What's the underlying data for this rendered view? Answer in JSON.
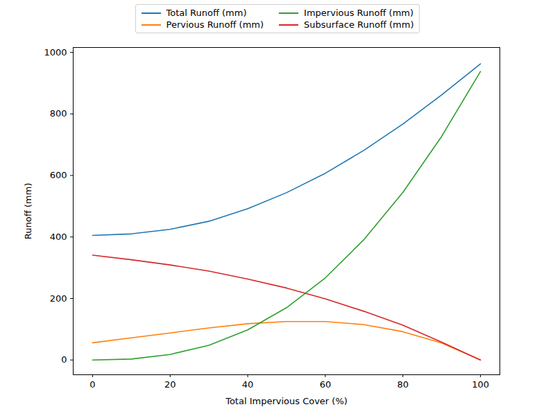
{
  "chart_data": {
    "type": "line",
    "x_label": "Total Impervious Cover (%)",
    "y_label": "Runoff (mm)",
    "x": [
      0,
      10,
      20,
      30,
      40,
      50,
      60,
      70,
      80,
      90,
      100
    ],
    "series": [
      {
        "name": "Total Runoff (mm)",
        "color": "#1f77b4",
        "values": [
          405,
          410,
          425,
          451,
          492,
          544,
          607,
          682,
          767,
          862,
          963
        ]
      },
      {
        "name": "Pervious Runoff (mm)",
        "color": "#ff7f0e",
        "values": [
          56,
          72,
          88,
          104,
          118,
          125,
          125,
          115,
          92,
          55,
          0
        ]
      },
      {
        "name": "Impervious Runoff (mm)",
        "color": "#2ca02c",
        "values": [
          0,
          3,
          18,
          48,
          98,
          170,
          267,
          392,
          545,
          727,
          938
        ]
      },
      {
        "name": "Subsurface Runoff (mm)",
        "color": "#d62728",
        "values": [
          341,
          326,
          309,
          289,
          263,
          234,
          199,
          158,
          113,
          58,
          0
        ]
      }
    ],
    "xlim": [
      -5,
      105
    ],
    "xticks": [
      0,
      20,
      40,
      60,
      80,
      100
    ],
    "ylim": [
      -48,
      1016
    ],
    "yticks": [
      0,
      200,
      400,
      600,
      800,
      1000
    ],
    "legend": "top",
    "grid": false
  }
}
